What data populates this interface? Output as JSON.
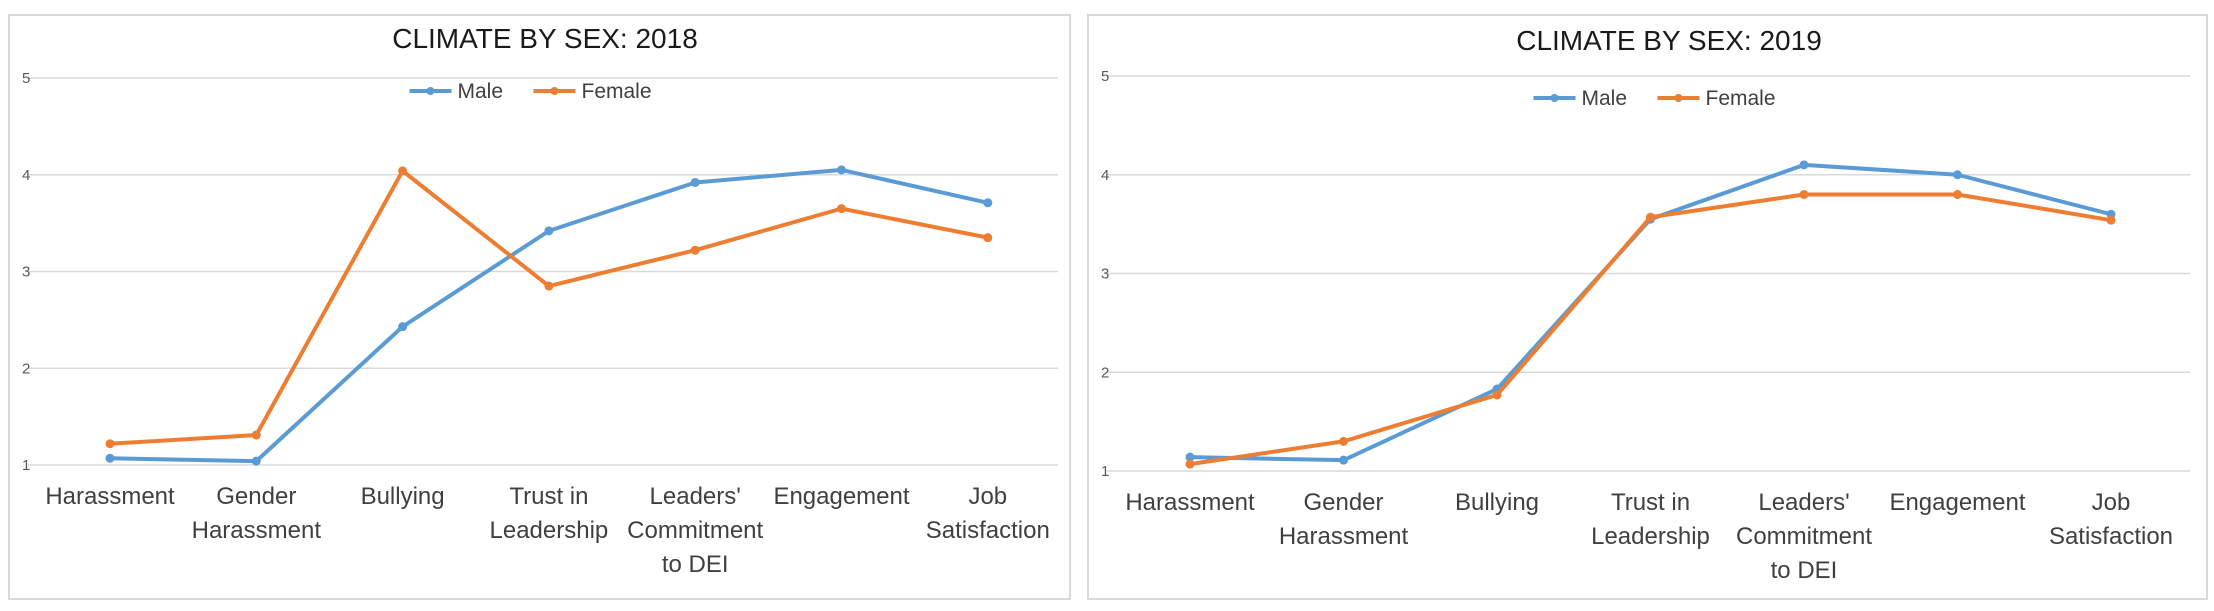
{
  "chart_data": [
    {
      "type": "line",
      "title": "CLIMATE BY SEX: 2018",
      "categories": [
        [
          "Harassment"
        ],
        [
          "Gender",
          "Harassment"
        ],
        [
          "Bullying"
        ],
        [
          "Trust in",
          "Leadership"
        ],
        [
          "Leaders'",
          "Commitment",
          "to DEI"
        ],
        [
          "Engagement"
        ],
        [
          "Job",
          "Satisfaction"
        ]
      ],
      "ylim": [
        1,
        5
      ],
      "yticks": [
        "1",
        "2",
        "3",
        "4",
        "5"
      ],
      "grid": true,
      "legend_position": "top-center",
      "series": [
        {
          "name": "Male",
          "color": "#5b9bd5",
          "values": [
            1.07,
            1.04,
            2.43,
            3.42,
            3.92,
            4.05,
            3.71
          ]
        },
        {
          "name": "Female",
          "color": "#ed7d31",
          "values": [
            1.22,
            1.31,
            4.04,
            2.85,
            3.22,
            3.65,
            3.35
          ]
        }
      ]
    },
    {
      "type": "line",
      "title": "CLIMATE BY SEX: 2019",
      "categories": [
        [
          "Harassment"
        ],
        [
          "Gender",
          "Harassment"
        ],
        [
          "Bullying"
        ],
        [
          "Trust in",
          "Leadership"
        ],
        [
          "Leaders'",
          "Commitment",
          "to DEI"
        ],
        [
          "Engagement"
        ],
        [
          "Job",
          "Satisfaction"
        ]
      ],
      "ylim": [
        1,
        5
      ],
      "yticks": [
        "1",
        "2",
        "3",
        "4",
        "5"
      ],
      "grid": true,
      "legend_position": "top-center",
      "series": [
        {
          "name": "Male",
          "color": "#5b9bd5",
          "values": [
            1.14,
            1.11,
            1.83,
            3.55,
            4.1,
            4.0,
            3.6
          ]
        },
        {
          "name": "Female",
          "color": "#ed7d31",
          "values": [
            1.07,
            1.3,
            1.77,
            3.57,
            3.8,
            3.8,
            3.54
          ]
        }
      ]
    }
  ]
}
